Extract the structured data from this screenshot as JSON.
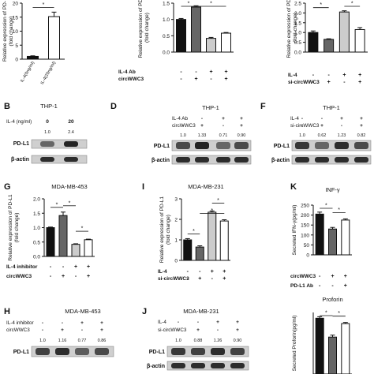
{
  "panels": {
    "B": {
      "letter": "B",
      "title": "THP-1",
      "cond_rows": [
        {
          "label": "IL-4 (ng/ml)",
          "values": [
            "0",
            "20"
          ]
        }
      ],
      "quant": [
        "1.0",
        "2.4"
      ],
      "blot_labels": [
        "PD-L1",
        "β-actin"
      ]
    },
    "D": {
      "letter": "D",
      "title": "THP-1",
      "cond_rows": [
        {
          "label": "IL-4 Ab",
          "values": [
            "-",
            "-",
            "+",
            "+"
          ]
        },
        {
          "label": "circWWC3",
          "values": [
            "-",
            "+",
            "-",
            "+"
          ]
        }
      ],
      "quant": [
        "1.0",
        "1.33",
        "0.71",
        "0.90"
      ],
      "blot_labels": [
        "PD-L1",
        "β-actin"
      ]
    },
    "F": {
      "letter": "F",
      "title": "THP-1",
      "cond_rows": [
        {
          "label": "IL-4",
          "values": [
            "-",
            "-",
            "+",
            "+"
          ]
        },
        {
          "label": "si-circWWC3",
          "values": [
            "-",
            "+",
            "-",
            "+"
          ]
        }
      ],
      "quant": [
        "1.0",
        "0.62",
        "1.23",
        "0.82"
      ],
      "blot_labels": [
        "PD-L1",
        "β-actin"
      ]
    },
    "H": {
      "letter": "H",
      "title": "MDA-MB-453",
      "cond_rows": [
        {
          "label": "IL-4 inhibitor",
          "values": [
            "-",
            "-",
            "+",
            "+"
          ]
        },
        {
          "label": "circWWC3",
          "values": [
            "-",
            "+",
            "-",
            "+"
          ]
        }
      ],
      "quant": [
        "1.0",
        "1.16",
        "0.77",
        "0.86"
      ],
      "blot_labels": [
        "PD-L1"
      ]
    },
    "J": {
      "letter": "J",
      "title": "MDA-MB-231",
      "cond_rows": [
        {
          "label": "IL-4",
          "values": [
            "-",
            "-",
            "+",
            "+"
          ]
        },
        {
          "label": "si-circWWC3",
          "values": [
            "-",
            "+",
            "-",
            "+"
          ]
        }
      ],
      "quant": [
        "1.0",
        "0.88",
        "1.26",
        "0.90"
      ],
      "blot_labels": [
        "PD-L1",
        "β-actin"
      ]
    }
  },
  "chart_data": [
    {
      "id": "A",
      "type": "bar",
      "letter": "",
      "ylabel": "Relative expression of PD-\n(fold change)",
      "categories": [
        "IL-4(0ng/ml)",
        "IL-4(20ng/ml)"
      ],
      "values": [
        1.0,
        15.2
      ],
      "errors": [
        0.2,
        1.6
      ],
      "ylim": [
        0,
        20
      ],
      "yticks": [
        0,
        5,
        10,
        15,
        20
      ],
      "fills": [
        "#111111",
        "#ffffff"
      ],
      "sig": [
        {
          "from": 0,
          "to": 1,
          "label": "*"
        }
      ]
    },
    {
      "id": "C",
      "type": "bar",
      "letter": "",
      "ylabel": "Relative expression of PD-\n(fold change)",
      "cond_rows": [
        {
          "label": "IL-4 Ab",
          "values": [
            "-",
            "-",
            "+",
            "+"
          ]
        },
        {
          "label": "circWWC3",
          "values": [
            "-",
            "+",
            "-",
            "+"
          ]
        }
      ],
      "values": [
        1.0,
        1.38,
        0.42,
        0.58
      ],
      "errors": [
        0.03,
        0.04,
        0.03,
        0.02
      ],
      "ylim": [
        0,
        1.5
      ],
      "yticks": [
        0.0,
        0.5,
        1.0,
        1.5
      ],
      "fills": [
        "#111111",
        "#666666",
        "#cccccc",
        "#ffffff"
      ],
      "sig": [
        {
          "from": 0,
          "to": 1,
          "label": "*"
        },
        {
          "from": 1,
          "to": 3,
          "label": "*"
        }
      ]
    },
    {
      "id": "E",
      "type": "bar",
      "letter": "",
      "ylabel": "Relative expression of PD-\n(fold change)",
      "cond_rows": [
        {
          "label": "IL-4",
          "values": [
            "-",
            "-",
            "+",
            "+"
          ]
        },
        {
          "label": "si-circWWC3",
          "values": [
            "-",
            "+",
            "-",
            "+"
          ]
        }
      ],
      "values": [
        1.0,
        0.65,
        2.05,
        1.15
      ],
      "errors": [
        0.08,
        0.03,
        0.06,
        0.1
      ],
      "ylim": [
        0,
        2.5
      ],
      "yticks": [
        0.0,
        0.5,
        1.0,
        1.5,
        2.0,
        2.5
      ],
      "fills": [
        "#111111",
        "#666666",
        "#cccccc",
        "#ffffff"
      ],
      "sig": [
        {
          "from": 0,
          "to": 1,
          "label": "*"
        },
        {
          "from": 2,
          "to": 3,
          "label": "*"
        }
      ]
    },
    {
      "id": "G",
      "type": "bar",
      "letter": "G",
      "title": "MDA-MB-453",
      "ylabel": "Relative expression of PD-L1\n(fold change)",
      "cond_rows": [
        {
          "label": "IL-4 inhibitor",
          "values": [
            "-",
            "-",
            "+",
            "+"
          ]
        },
        {
          "label": "circWWC3",
          "values": [
            "-",
            "+",
            "-",
            "+"
          ]
        }
      ],
      "values": [
        1.0,
        1.42,
        0.42,
        0.58
      ],
      "errors": [
        0.02,
        0.12,
        0.02,
        0.02
      ],
      "ylim": [
        0,
        2.0
      ],
      "yticks": [
        0.0,
        0.5,
        1.0,
        1.5,
        2.0
      ],
      "fills": [
        "#111111",
        "#666666",
        "#cccccc",
        "#ffffff"
      ],
      "sig": [
        {
          "from": 0,
          "to": 1,
          "label": "*"
        },
        {
          "from": 1,
          "to": 2,
          "label": "*"
        },
        {
          "from": 2,
          "to": 3,
          "label": "*"
        }
      ]
    },
    {
      "id": "I",
      "type": "bar",
      "letter": "I",
      "title": "MDA-MB-231",
      "ylabel": "Relative expression of PD-L1\n(fold change)",
      "cond_rows": [
        {
          "label": "IL-4",
          "values": [
            "-",
            "-",
            "+",
            "+"
          ]
        },
        {
          "label": "si-circWWC3",
          "values": [
            "-",
            "+",
            "-",
            "+"
          ]
        }
      ],
      "values": [
        1.0,
        0.65,
        2.35,
        1.92
      ],
      "errors": [
        0.06,
        0.06,
        0.06,
        0.06
      ],
      "ylim": [
        0,
        3
      ],
      "yticks": [
        0,
        1,
        2,
        3
      ],
      "fills": [
        "#111111",
        "#666666",
        "#cccccc",
        "#ffffff"
      ],
      "sig": [
        {
          "from": 0,
          "to": 1,
          "label": "*"
        },
        {
          "from": 1,
          "to": 3,
          "label": "*"
        },
        {
          "from": 2,
          "to": 3,
          "label": "*"
        }
      ]
    },
    {
      "id": "K1",
      "type": "bar",
      "letter": "K",
      "title": "INF-γ",
      "ylabel": "Secreted IFN-γ(pg/ml)",
      "cond_rows": [
        {
          "label": "circWWC3",
          "values": [
            "-",
            "+",
            "+"
          ]
        },
        {
          "label": "PD-L1 Ab",
          "values": [
            "-",
            "-",
            "+"
          ]
        }
      ],
      "values": [
        205,
        130,
        175
      ],
      "errors": [
        10,
        8,
        6
      ],
      "ylim": [
        0,
        250
      ],
      "yticks": [
        0,
        50,
        100,
        150,
        200,
        250
      ],
      "fills": [
        "#111111",
        "#666666",
        "#ffffff"
      ],
      "sig": [
        {
          "from": 0,
          "to": 1,
          "label": "*"
        },
        {
          "from": 1,
          "to": 2,
          "label": "*"
        }
      ]
    },
    {
      "id": "K2",
      "type": "bar",
      "letter": "",
      "title": "Proforin",
      "ylabel": "Secreted Proforin(pg/ml)",
      "values": [
        725,
        480,
        655
      ],
      "errors": [
        20,
        25,
        15
      ],
      "ylim": [
        0,
        800
      ],
      "yticks": [],
      "fills": [
        "#111111",
        "#666666",
        "#ffffff"
      ],
      "sig": [
        {
          "from": 0,
          "to": 1,
          "label": "*"
        },
        {
          "from": 1,
          "to": 2,
          "label": "*"
        }
      ]
    }
  ]
}
